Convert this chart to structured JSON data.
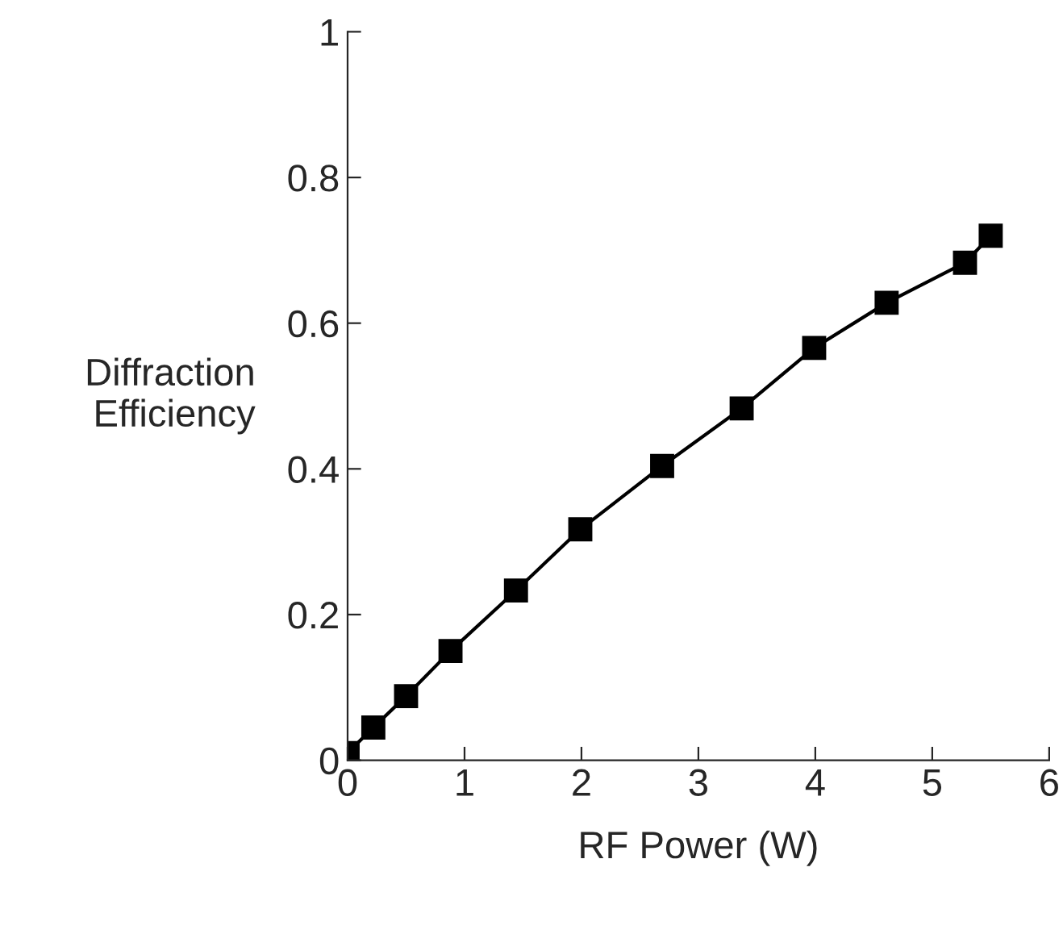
{
  "chart_data": {
    "type": "line",
    "xlabel": "RF Power (W)",
    "ylabel": "Diffraction\nEfficiency",
    "x": [
      0.0,
      0.22,
      0.5,
      0.88,
      1.44,
      1.99,
      2.69,
      3.37,
      3.99,
      4.61,
      5.28,
      5.5
    ],
    "series": [
      {
        "color": "#000000",
        "values": [
          0.01,
          0.045,
          0.088,
          0.15,
          0.233,
          0.317,
          0.404,
          0.483,
          0.566,
          0.628,
          0.683,
          0.72
        ]
      }
    ],
    "xlim": [
      0,
      6
    ],
    "xticks": [
      0,
      1,
      2,
      3,
      4,
      5,
      6
    ],
    "ylim": [
      0,
      1
    ],
    "yticks": [
      0,
      0.2,
      0.4,
      0.6,
      0.8,
      1
    ],
    "marker": "square",
    "line_style": "solid",
    "grid": false,
    "legend": false
  }
}
